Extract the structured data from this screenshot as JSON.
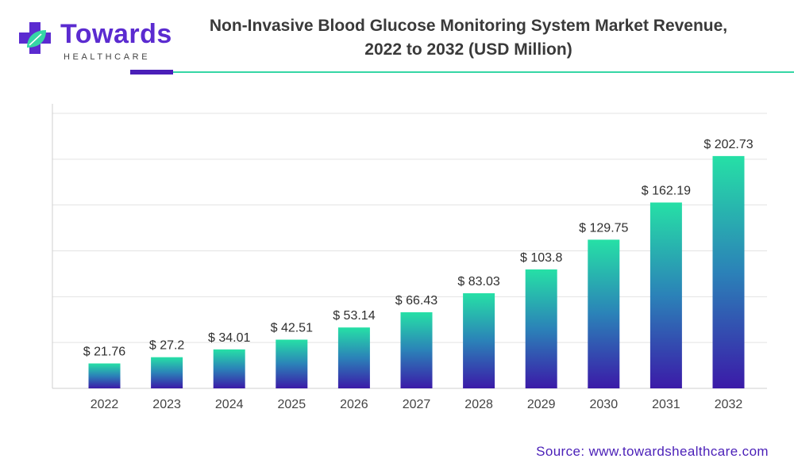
{
  "brand": {
    "name": "Towards",
    "tagline": "HEALTHCARE",
    "colors": {
      "purple": "#5b2bd0",
      "green": "#36d6a5",
      "dark_purple": "#3d1eb0"
    }
  },
  "source_text": "Source: www.towardshealthcare.com",
  "chart_data": {
    "type": "bar",
    "title": "Non-Invasive Blood Glucose Monitoring System Market Revenue, 2022 to 2032 (USD Million)",
    "title_lines": [
      "Non-Invasive Blood Glucose Monitoring System Market Revenue,",
      "2022 to 2032 (USD Million)"
    ],
    "categories": [
      "2022",
      "2023",
      "2024",
      "2025",
      "2026",
      "2027",
      "2028",
      "2029",
      "2030",
      "2031",
      "2032"
    ],
    "values": [
      21.76,
      27.2,
      34.01,
      42.51,
      53.14,
      66.43,
      83.03,
      103.8,
      129.75,
      162.19,
      202.73
    ],
    "value_labels": [
      "$ 21.76",
      "$ 27.2",
      "$ 34.01",
      "$ 42.51",
      "$ 53.14",
      "$ 66.43",
      "$ 83.03",
      "$ 103.8",
      "$ 129.75",
      "$ 162.19",
      "$ 202.73"
    ],
    "xlabel": "",
    "ylabel": "",
    "ylim": [
      0,
      240
    ],
    "grid": true,
    "gradient_colors": [
      "#26e0a6",
      "#3b1aa8"
    ]
  }
}
